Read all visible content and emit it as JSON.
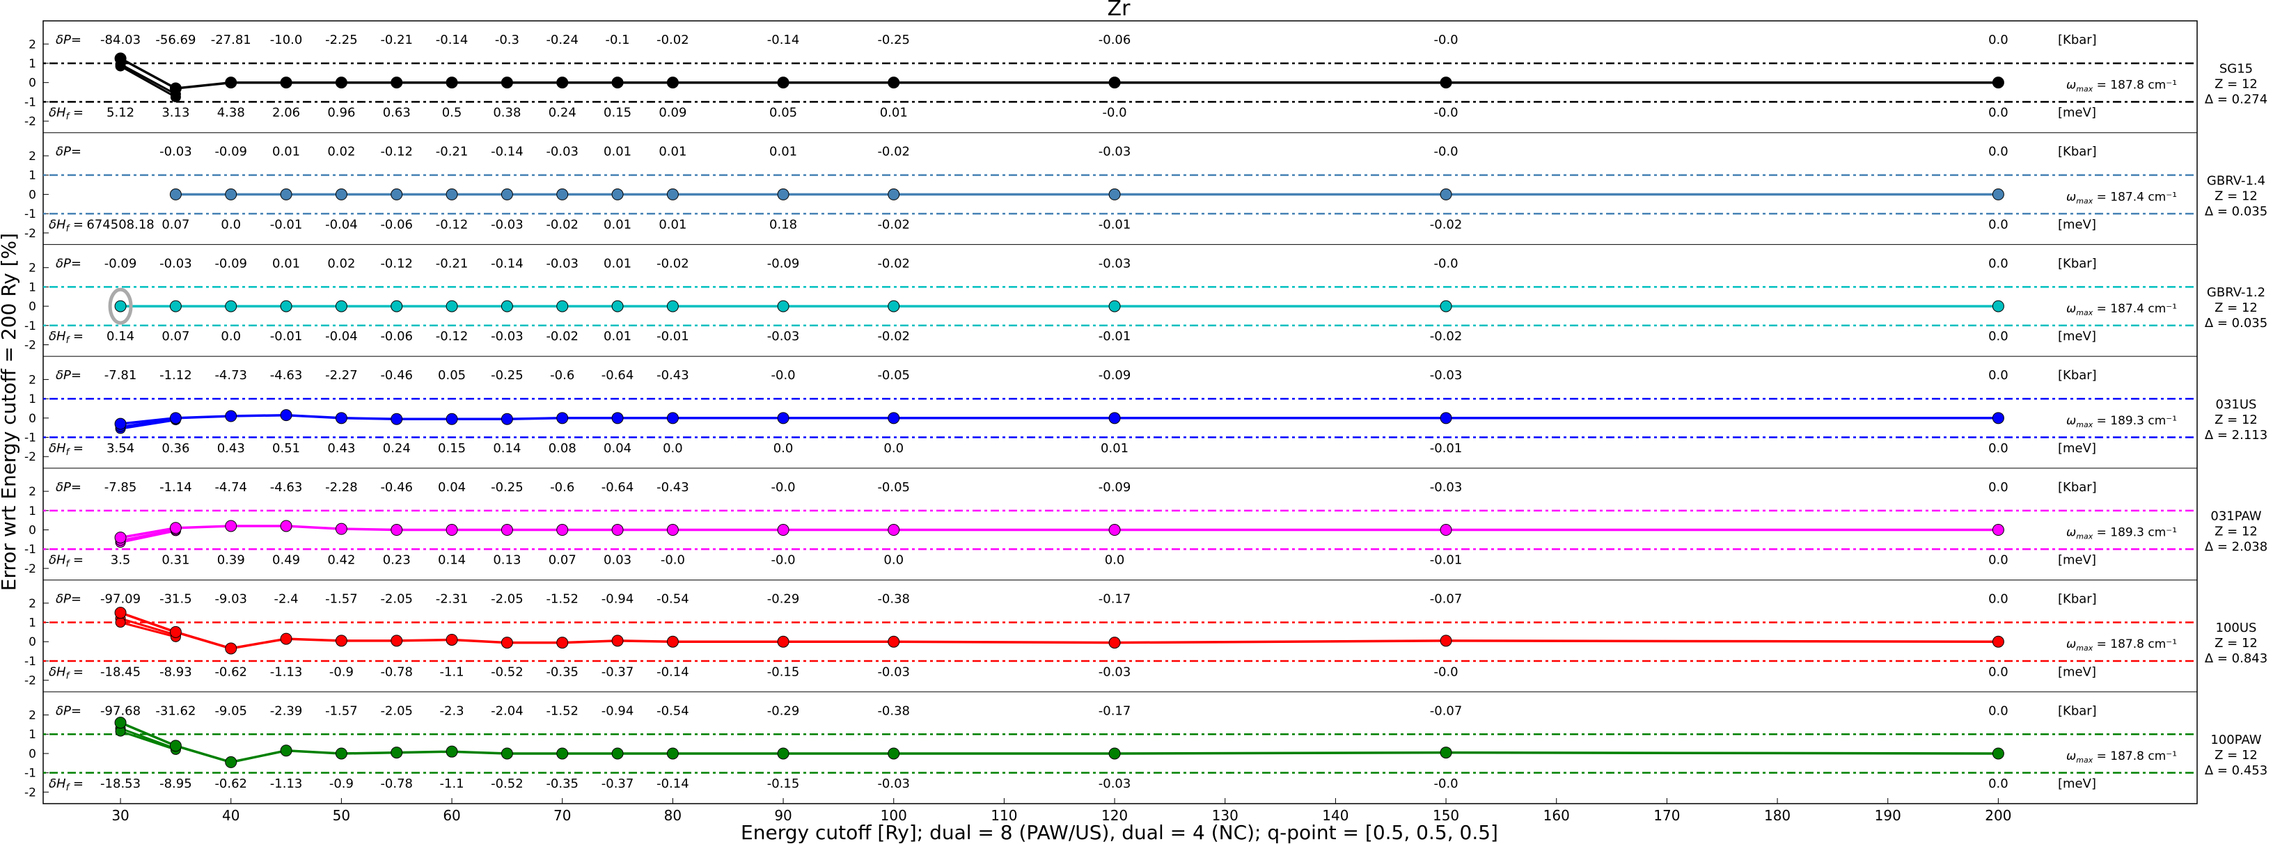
{
  "chart_data": {
    "type": "line",
    "title": "Zr",
    "xlabel": "Energy cutoff [Ry]; dual = 8 (PAW/US), dual = 4 (NC); q-point = [0.5, 0.5, 0.5]",
    "ylabel": "Error wrt Energy cutoff = 200 Ry [%]",
    "xlim": [
      23,
      218
    ],
    "x_ticks": [
      30,
      40,
      50,
      60,
      70,
      80,
      90,
      100,
      110,
      120,
      130,
      140,
      150,
      160,
      170,
      180,
      190,
      200
    ],
    "panel_ylim": [
      -2.6,
      3.2
    ],
    "panel_y_ticks": [
      "2",
      "1",
      "0",
      "-1",
      "-2"
    ],
    "threshold_lines": [
      1,
      -1
    ],
    "dP_label": "δP=",
    "dH_label": "δH",
    "dH_subscript": "f",
    "dH_eq": " =",
    "kbar_unit": "[Kbar]",
    "mev_unit": "[meV]",
    "omega_label": "ω",
    "omega_subscript": "max",
    "panels": [
      {
        "name": "SG15",
        "z": "Z = 12",
        "delta": "Δ = 0.274",
        "color": "#000000",
        "omega": "= 187.8 cm⁻¹",
        "x": [
          30,
          35,
          40,
          45,
          50,
          55,
          60,
          65,
          70,
          75,
          80,
          90,
          100,
          120,
          150,
          200
        ],
        "y": [
          1.25,
          -0.3,
          0.0,
          0.0,
          0.0,
          0.0,
          0.0,
          0.0,
          0.0,
          0.0,
          0.0,
          0.0,
          0.0,
          0.0,
          0.0,
          0.0
        ],
        "y_extra": [
          [
            0.95,
            -0.6
          ],
          [
            0.85,
            -0.75
          ]
        ],
        "dP": [
          "-84.03",
          "-56.69",
          "-27.81",
          "-10.0",
          "-2.25",
          "-0.21",
          "-0.14",
          "-0.3",
          "-0.24",
          "-0.1",
          "-0.02",
          "-0.14",
          "-0.25",
          "-0.06",
          "-0.0",
          "0.0"
        ],
        "dH": [
          "5.12",
          "3.13",
          "4.38",
          "2.06",
          "0.96",
          "0.63",
          "0.5",
          "0.38",
          "0.24",
          "0.15",
          "0.09",
          "0.05",
          "0.01",
          "-0.0",
          "-0.0",
          "0.0"
        ]
      },
      {
        "name": "GBRV-1.4",
        "z": "Z = 12",
        "delta": "Δ = 0.035",
        "color": "#4682b4",
        "omega": "= 187.4 cm⁻¹",
        "x": [
          35,
          40,
          45,
          50,
          55,
          60,
          65,
          70,
          75,
          80,
          90,
          100,
          120,
          150,
          200
        ],
        "y": [
          0,
          0,
          0,
          0,
          0,
          0,
          0,
          0,
          0,
          0,
          0,
          0,
          0,
          0,
          0
        ],
        "y_extra": [],
        "dP_x": [
          35,
          40,
          45,
          50,
          55,
          60,
          65,
          70,
          75,
          80,
          90,
          100,
          120,
          150,
          200
        ],
        "dP": [
          "-0.03",
          "-0.09",
          "0.01",
          "0.02",
          "-0.12",
          "-0.21",
          "-0.14",
          "-0.03",
          "0.01",
          "0.01",
          "0.01",
          "-0.02",
          "-0.03",
          "-0.0",
          "0.0"
        ],
        "dH_x": [
          30,
          35,
          40,
          45,
          50,
          55,
          60,
          65,
          70,
          75,
          80,
          90,
          100,
          120,
          150,
          200
        ],
        "dH": [
          "674508.18",
          "0.07",
          "0.0",
          "-0.01",
          "-0.04",
          "-0.06",
          "-0.12",
          "-0.03",
          "-0.02",
          "0.01",
          "0.01",
          "0.18",
          "-0.02",
          "-0.01",
          "-0.02",
          "0.0"
        ]
      },
      {
        "name": "GBRV-1.2",
        "z": "Z = 12",
        "delta": "Δ = 0.035",
        "color": "#00bfbf",
        "omega": "= 187.4 cm⁻¹",
        "x": [
          30,
          35,
          40,
          45,
          50,
          55,
          60,
          65,
          70,
          75,
          80,
          90,
          100,
          120,
          150,
          200
        ],
        "y": [
          0,
          0,
          0,
          0,
          0,
          0,
          0,
          0,
          0,
          0,
          0,
          0,
          0,
          0,
          0,
          0
        ],
        "y_extra": [],
        "highlight_x": 30,
        "dP": [
          "-0.09",
          "-0.03",
          "-0.09",
          "0.01",
          "0.02",
          "-0.12",
          "-0.21",
          "-0.14",
          "-0.03",
          "0.01",
          "-0.02",
          "-0.09",
          "-0.02",
          "-0.03",
          "-0.0",
          "0.0"
        ],
        "dH": [
          "0.14",
          "0.07",
          "0.0",
          "-0.01",
          "-0.04",
          "-0.06",
          "-0.12",
          "-0.03",
          "-0.02",
          "0.01",
          "-0.01",
          "-0.03",
          "-0.02",
          "-0.01",
          "-0.02",
          "0.0"
        ]
      },
      {
        "name": "031US",
        "z": "Z = 12",
        "delta": "Δ = 2.113",
        "color": "#0000ff",
        "omega": "= 189.3 cm⁻¹",
        "x": [
          30,
          35,
          40,
          45,
          50,
          55,
          60,
          65,
          70,
          75,
          80,
          90,
          100,
          120,
          150,
          200
        ],
        "y": [
          -0.3,
          0.0,
          0.1,
          0.15,
          0.0,
          -0.05,
          -0.05,
          -0.05,
          0.0,
          0.0,
          0.0,
          0.0,
          0.0,
          0.0,
          0.0,
          0.0
        ],
        "y_extra": [
          [
            -0.55,
            -0.1
          ],
          [
            -0.45,
            -0.05
          ]
        ],
        "dP": [
          "-7.81",
          "-1.12",
          "-4.73",
          "-4.63",
          "-2.27",
          "-0.46",
          "0.05",
          "-0.25",
          "-0.6",
          "-0.64",
          "-0.43",
          "-0.0",
          "-0.05",
          "-0.09",
          "-0.03",
          "0.0"
        ],
        "dH": [
          "3.54",
          "0.36",
          "0.43",
          "0.51",
          "0.43",
          "0.24",
          "0.15",
          "0.14",
          "0.08",
          "0.04",
          "0.0",
          "0.0",
          "0.0",
          "0.01",
          "-0.01",
          "0.0"
        ]
      },
      {
        "name": "031PAW",
        "z": "Z = 12",
        "delta": "Δ = 2.038",
        "color": "#ff00ff",
        "omega": "= 189.3 cm⁻¹",
        "x": [
          30,
          35,
          40,
          45,
          50,
          55,
          60,
          65,
          70,
          75,
          80,
          90,
          100,
          120,
          150,
          200
        ],
        "y": [
          -0.4,
          0.1,
          0.2,
          0.2,
          0.05,
          0.0,
          0.0,
          0.0,
          0.0,
          0.0,
          0.0,
          0.0,
          0.0,
          0.0,
          0.0,
          0.0
        ],
        "y_extra": [
          [
            -0.65,
            -0.05
          ],
          [
            -0.55,
            0.0
          ]
        ],
        "dP": [
          "-7.85",
          "-1.14",
          "-4.74",
          "-4.63",
          "-2.28",
          "-0.46",
          "0.04",
          "-0.25",
          "-0.6",
          "-0.64",
          "-0.43",
          "-0.0",
          "-0.05",
          "-0.09",
          "-0.03",
          "0.0"
        ],
        "dH": [
          "3.5",
          "0.31",
          "0.39",
          "0.49",
          "0.42",
          "0.23",
          "0.14",
          "0.13",
          "0.07",
          "0.03",
          "-0.0",
          "-0.0",
          "0.0",
          "0.0",
          "-0.01",
          "0.0"
        ]
      },
      {
        "name": "100US",
        "z": "Z = 12",
        "delta": "Δ = 0.843",
        "color": "#ff0000",
        "omega": "= 187.8 cm⁻¹",
        "x": [
          30,
          35,
          40,
          45,
          50,
          55,
          60,
          65,
          70,
          75,
          80,
          90,
          100,
          120,
          150,
          200
        ],
        "y": [
          1.5,
          0.5,
          -0.35,
          0.15,
          0.05,
          0.05,
          0.1,
          -0.05,
          -0.05,
          0.05,
          0.0,
          0.0,
          0.0,
          -0.05,
          0.05,
          0.0
        ],
        "y_extra": [
          [
            1.2,
            0.35
          ],
          [
            1.0,
            0.25
          ]
        ],
        "dP": [
          "-97.09",
          "-31.5",
          "-9.03",
          "-2.4",
          "-1.57",
          "-2.05",
          "-2.31",
          "-2.05",
          "-1.52",
          "-0.94",
          "-0.54",
          "-0.29",
          "-0.38",
          "-0.17",
          "-0.07",
          "0.0"
        ],
        "dH": [
          "-18.45",
          "-8.93",
          "-0.62",
          "-1.13",
          "-0.9",
          "-0.78",
          "-1.1",
          "-0.52",
          "-0.35",
          "-0.37",
          "-0.14",
          "-0.15",
          "-0.03",
          "-0.03",
          "-0.0",
          "0.0"
        ]
      },
      {
        "name": "100PAW",
        "z": "Z = 12",
        "delta": "Δ = 0.453",
        "color": "#008000",
        "omega": "= 187.8 cm⁻¹",
        "x": [
          30,
          35,
          40,
          45,
          50,
          55,
          60,
          65,
          70,
          75,
          80,
          90,
          100,
          120,
          150,
          200
        ],
        "y": [
          1.6,
          0.4,
          -0.45,
          0.15,
          0.0,
          0.05,
          0.1,
          0.0,
          0.0,
          0.0,
          0.0,
          0.0,
          0.0,
          0.0,
          0.05,
          0.0
        ],
        "y_extra": [
          [
            1.3,
            0.25
          ],
          [
            1.15,
            0.2
          ]
        ],
        "dP": [
          "-97.68",
          "-31.62",
          "-9.05",
          "-2.39",
          "-1.57",
          "-2.05",
          "-2.3",
          "-2.04",
          "-1.52",
          "-0.94",
          "-0.54",
          "-0.29",
          "-0.38",
          "-0.17",
          "-0.07",
          "0.0"
        ],
        "dH": [
          "-18.53",
          "-8.95",
          "-0.62",
          "-1.13",
          "-0.9",
          "-0.78",
          "-1.1",
          "-0.52",
          "-0.35",
          "-0.37",
          "-0.14",
          "-0.15",
          "-0.03",
          "-0.03",
          "-0.0",
          "0.0"
        ]
      }
    ]
  }
}
